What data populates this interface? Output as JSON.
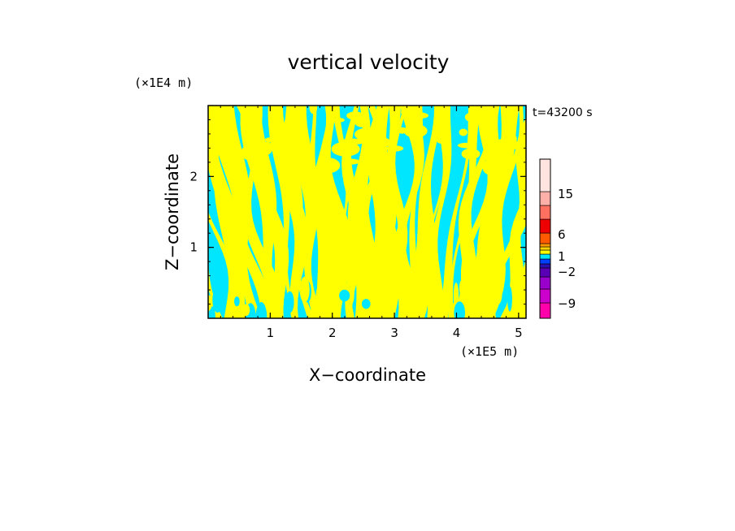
{
  "chart_data": {
    "type": "heatmap",
    "title": "vertical velocity",
    "xlabel": "X−coordinate",
    "ylabel": "Z−coordinate",
    "x_scale_label": "(×1E5 m)",
    "y_scale_label": "(×1E4 m)",
    "time_label": "t=43200 s",
    "xlim": [
      0,
      5.12
    ],
    "ylim": [
      0,
      3.0
    ],
    "x_ticks": [
      1,
      2,
      3,
      4,
      5
    ],
    "y_ticks": [
      1,
      2
    ],
    "x_tick_labels": [
      "1",
      "2",
      "3",
      "4",
      "5"
    ],
    "y_tick_labels": [
      "1",
      "2"
    ],
    "field_colors": {
      "negative_small": "#00e6ff",
      "positive_small": "#ffff00"
    },
    "colorbar": {
      "bands": [
        {
          "color": "#ff00aa"
        },
        {
          "color": "#cc00cc"
        },
        {
          "color": "#9900cc"
        },
        {
          "color": "#5a00b4"
        },
        {
          "color": "#2a10b0"
        },
        {
          "color": "#0040ff"
        },
        {
          "color": "#00e6ff"
        },
        {
          "color": "#ffff00"
        },
        {
          "color": "#ffd200"
        },
        {
          "color": "#ff9900"
        },
        {
          "color": "#ff5a00"
        },
        {
          "color": "#ee0000"
        },
        {
          "color": "#ff7060"
        },
        {
          "color": "#ffb0a8"
        },
        {
          "color": "#ffe4e0"
        }
      ],
      "labels": [
        {
          "text": "−9",
          "level": -9
        },
        {
          "text": "−2",
          "level": -2
        },
        {
          "text": "1",
          "level": 1
        },
        {
          "text": "6",
          "level": 6
        },
        {
          "text": "15",
          "level": 15
        }
      ]
    }
  }
}
